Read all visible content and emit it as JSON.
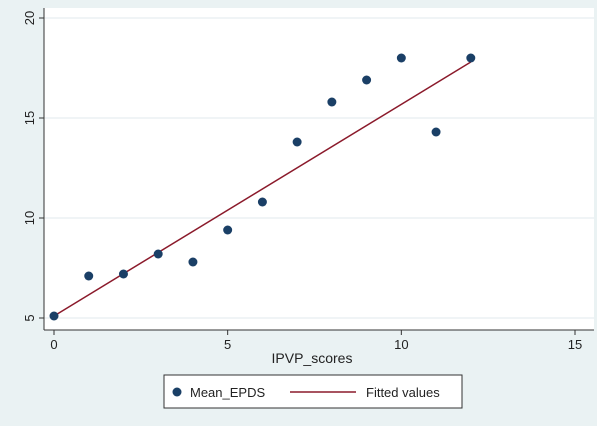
{
  "chart_data": {
    "type": "scatter",
    "title": "",
    "xlabel": "IPVP_scores",
    "ylabel": "",
    "xlim": [
      0,
      15
    ],
    "ylim": [
      5,
      20
    ],
    "xticks": [
      0,
      5,
      10,
      15
    ],
    "yticks": [
      5,
      10,
      15,
      20
    ],
    "x_tick_labels": [
      "0",
      "5",
      "10",
      "15"
    ],
    "y_tick_labels": [
      "5",
      "10",
      "15",
      "20"
    ],
    "grid": true,
    "legend_position": "bottom",
    "series": [
      {
        "name": "Mean_EPDS",
        "kind": "scatter",
        "color": "#1a3f66",
        "points": [
          {
            "x": 0,
            "y": 5.1
          },
          {
            "x": 1,
            "y": 7.1
          },
          {
            "x": 2,
            "y": 7.2
          },
          {
            "x": 3,
            "y": 8.2
          },
          {
            "x": 4,
            "y": 7.8
          },
          {
            "x": 5,
            "y": 9.4
          },
          {
            "x": 6,
            "y": 10.8
          },
          {
            "x": 7,
            "y": 13.8
          },
          {
            "x": 8,
            "y": 15.8
          },
          {
            "x": 9,
            "y": 16.9
          },
          {
            "x": 10,
            "y": 18.0
          },
          {
            "x": 11,
            "y": 14.3
          },
          {
            "x": 12,
            "y": 18.0
          }
        ]
      },
      {
        "name": "Fitted values",
        "kind": "line",
        "color": "#8b1a2b",
        "points": [
          {
            "x": 0,
            "y": 5.1
          },
          {
            "x": 12,
            "y": 17.8
          }
        ]
      }
    ]
  }
}
